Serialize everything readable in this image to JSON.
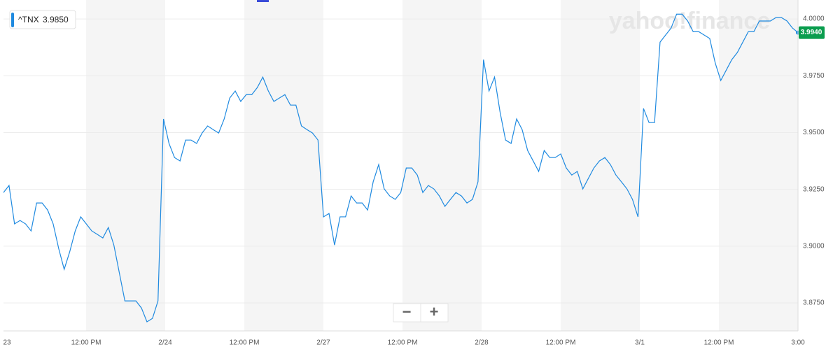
{
  "chart_data": {
    "type": "line",
    "watermark": "yahoo!finance",
    "legend_value": "3.9850",
    "last_label": "3.9940",
    "zoom_out": "−",
    "zoom_in": "+",
    "series": [
      {
        "name": "^TNX",
        "color": "#1f8ae0",
        "values": [
          3.9236,
          3.9267,
          3.9098,
          3.9113,
          3.9098,
          3.9067,
          3.919,
          3.919,
          3.9159,
          3.9098,
          3.899,
          3.8898,
          3.8975,
          3.9067,
          3.9129,
          3.9098,
          3.9067,
          3.9052,
          3.9036,
          3.9082,
          3.9005,
          3.8882,
          3.8759,
          3.8759,
          3.8759,
          3.8728,
          3.8667,
          3.8682,
          3.8759,
          3.956,
          3.9452,
          3.939,
          3.9375,
          3.9467,
          3.9467,
          3.9452,
          3.9498,
          3.9529,
          3.9513,
          3.9498,
          3.956,
          3.9652,
          3.9683,
          3.9637,
          3.9667,
          3.9667,
          3.9698,
          3.9744,
          3.9683,
          3.9637,
          3.9652,
          3.9667,
          3.9621,
          3.9621,
          3.9529,
          3.9513,
          3.9498,
          3.9467,
          3.9129,
          3.9144,
          3.9005,
          3.9129,
          3.9129,
          3.9221,
          3.919,
          3.919,
          3.9159,
          3.9283,
          3.9359,
          3.9252,
          3.9221,
          3.9206,
          3.9236,
          3.9344,
          3.9344,
          3.9313,
          3.9236,
          3.9267,
          3.9252,
          3.9221,
          3.9175,
          3.9206,
          3.9236,
          3.9221,
          3.919,
          3.9206,
          3.9283,
          3.9821,
          3.9683,
          3.9744,
          3.959,
          3.9467,
          3.9452,
          3.956,
          3.9513,
          3.9421,
          3.9375,
          3.9329,
          3.9421,
          3.939,
          3.939,
          3.9406,
          3.9344,
          3.9313,
          3.9329,
          3.9252,
          3.9298,
          3.9344,
          3.9375,
          3.939,
          3.9359,
          3.9313,
          3.9283,
          3.9252,
          3.9206,
          3.9129,
          3.9606,
          3.9544,
          3.9544,
          3.9898,
          3.9929,
          3.996,
          4.0021,
          4.0021,
          3.9991,
          3.9944,
          3.9944,
          3.9929,
          3.9914,
          3.9806,
          3.9729,
          3.9775,
          3.9821,
          3.9852,
          3.9898,
          3.9944,
          3.9944,
          3.9991,
          3.9991,
          3.9991,
          4.0006,
          4.0006,
          3.9991,
          3.996,
          3.994
        ]
      }
    ],
    "xtick_labels": [
      "23",
      "12:00 PM",
      "2/24",
      "12:00 PM",
      "2/27",
      "12:00 PM",
      "2/28",
      "12:00 PM",
      "3/1",
      "12:00 PM",
      "3:00"
    ],
    "ylim": [
      3.8627,
      4.0068
    ],
    "yticks": [
      {
        "value": 3.875,
        "label": "3.8750"
      },
      {
        "value": 3.9,
        "label": "3.9000"
      },
      {
        "value": 3.925,
        "label": "3.9250"
      },
      {
        "value": 3.95,
        "label": "3.9500"
      },
      {
        "value": 3.975,
        "label": "3.9750"
      },
      {
        "value": 4.0,
        "label": "4.0000"
      }
    ],
    "grid": true
  }
}
